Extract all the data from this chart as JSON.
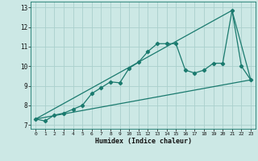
{
  "title": "",
  "xlabel": "Humidex (Indice chaleur)",
  "bg_color": "#cce8e5",
  "grid_color": "#aad0cc",
  "line_color": "#1a7a6e",
  "xlim": [
    -0.5,
    23.5
  ],
  "ylim": [
    6.8,
    13.3
  ],
  "xticks": [
    0,
    1,
    2,
    3,
    4,
    5,
    6,
    7,
    8,
    9,
    10,
    11,
    12,
    13,
    14,
    15,
    16,
    17,
    18,
    19,
    20,
    21,
    22,
    23
  ],
  "yticks": [
    7,
    8,
    9,
    10,
    11,
    12,
    13
  ],
  "line1_x": [
    0,
    1,
    2,
    3,
    4,
    5,
    6,
    7,
    8,
    9,
    10,
    11,
    12,
    13,
    14,
    15,
    16,
    17,
    18,
    19,
    20,
    21,
    22,
    23
  ],
  "line1_y": [
    7.3,
    7.2,
    7.5,
    7.6,
    7.8,
    8.0,
    8.6,
    8.9,
    9.2,
    9.15,
    9.9,
    10.2,
    10.75,
    11.15,
    11.15,
    11.15,
    9.8,
    9.65,
    9.8,
    10.15,
    10.15,
    12.85,
    10.0,
    9.3
  ],
  "line2_x": [
    0,
    23
  ],
  "line2_y": [
    7.3,
    9.3
  ],
  "line3_x": [
    0,
    21,
    23
  ],
  "line3_y": [
    7.3,
    12.85,
    9.3
  ]
}
